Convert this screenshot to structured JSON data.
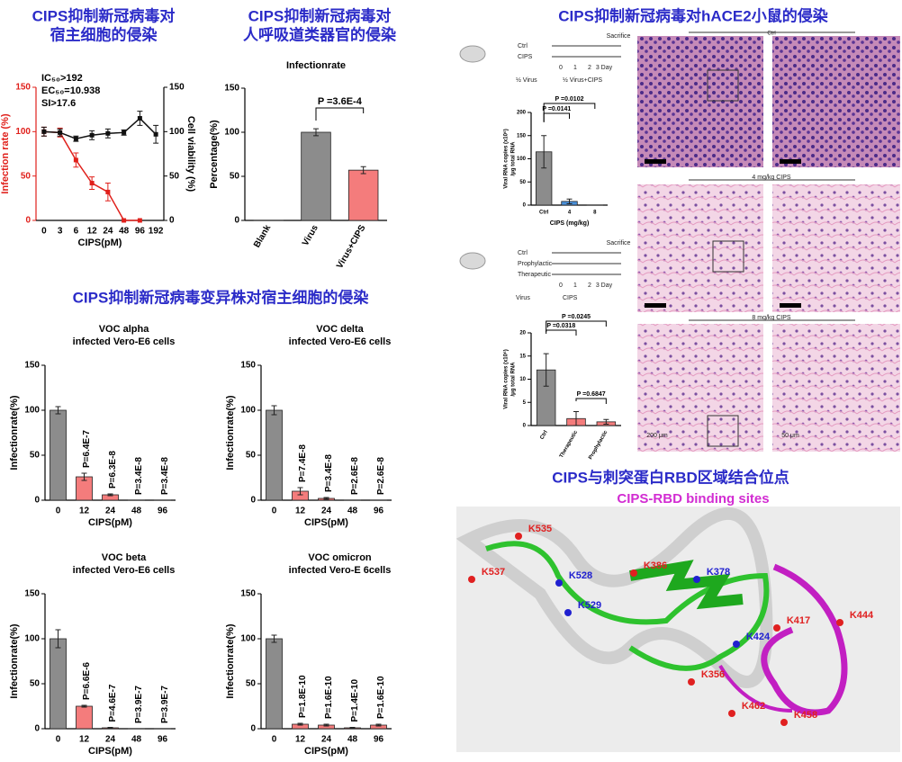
{
  "chart_data": [
    {
      "type": "line",
      "categories": [
        "0",
        "3",
        "6",
        "12",
        "24",
        "48",
        "96",
        "192"
      ],
      "x_label": "CIPS(pM)",
      "y_label": "Infection rate (%)",
      "y2_label": "Cell viability (%)",
      "ylim": [
        0,
        150
      ],
      "yticks": [
        0,
        50,
        100,
        150
      ],
      "y2lim": [
        0,
        150
      ],
      "y2ticks": [
        0,
        50,
        100,
        150
      ],
      "annotations": [
        "IC₅₀>192",
        "EC₅₀=10.938",
        "SI>17.6"
      ],
      "series": [
        {
          "color": "#e0201b",
          "values": [
            100,
            99,
            68,
            42,
            32,
            0,
            0,
            null
          ],
          "errors": [
            5,
            5,
            8,
            7,
            10,
            0,
            0,
            null
          ]
        },
        {
          "color": "#111111",
          "axis": "y2",
          "values": [
            100,
            99,
            92,
            96,
            98,
            99,
            115,
            97
          ],
          "errors": [
            5,
            4,
            3,
            5,
            5,
            3,
            8,
            10
          ]
        }
      ]
    },
    {
      "type": "bar",
      "title_lines": [
        "Infectionrate"
      ],
      "categories": [
        "Blank",
        "Virus",
        "Virus+CIPS"
      ],
      "y_label": "Percentage(%)",
      "values": [
        0,
        100,
        57
      ],
      "errors": [
        0,
        4,
        4
      ],
      "colors": [
        "#8c8c8c",
        "#8c8c8c",
        "#f47c7c"
      ],
      "ylim": [
        0,
        150
      ],
      "yticks": [
        0,
        50,
        100,
        150
      ],
      "brackets": [
        "P =3.6E-4"
      ]
    },
    {
      "type": "bar",
      "title_lines": [
        "VOC alpha",
        "infected Vero-E6 cells"
      ],
      "categories": [
        "0",
        "12",
        "24",
        "48",
        "96"
      ],
      "x_label": "CIPS(pM)",
      "y_label": "Infectionrate(%)",
      "values": [
        100,
        26,
        6,
        0,
        0
      ],
      "errors": [
        4,
        4,
        1,
        0,
        0
      ],
      "colors": [
        "#8c8c8c",
        "#f47c7c",
        "#f47c7c",
        "#f47c7c",
        "#f47c7c"
      ],
      "ylim": [
        0,
        150
      ],
      "yticks": [
        0,
        50,
        100,
        150
      ],
      "p_labels": [
        null,
        "P=6.4E-7",
        "P=6.3E-8",
        "P=3.4E-8",
        "P=3.4E-8"
      ]
    },
    {
      "type": "bar",
      "title_lines": [
        "VOC delta",
        "infected Vero-E6 cells"
      ],
      "categories": [
        "0",
        "12",
        "24",
        "48",
        "96"
      ],
      "x_label": "CIPS(pM)",
      "y_label": "Infectionrate(%)",
      "values": [
        100,
        10,
        2,
        0,
        0
      ],
      "errors": [
        5,
        4,
        1,
        0,
        0
      ],
      "colors": [
        "#8c8c8c",
        "#f47c7c",
        "#f47c7c",
        "#f47c7c",
        "#f47c7c"
      ],
      "ylim": [
        0,
        150
      ],
      "yticks": [
        0,
        50,
        100,
        150
      ],
      "p_labels": [
        null,
        "P=7.4E-8",
        "P=3.4E-8",
        "P=2.6E-8",
        "P=2.6E-8"
      ]
    },
    {
      "type": "bar",
      "title_lines": [
        "VOC beta",
        "infected Vero-E6 cells"
      ],
      "categories": [
        "0",
        "12",
        "24",
        "48",
        "96"
      ],
      "x_label": "CIPS(pM)",
      "y_label": "Infectionrate(%)",
      "values": [
        100,
        25,
        1,
        0,
        0
      ],
      "errors": [
        10,
        1,
        0.5,
        0,
        0
      ],
      "colors": [
        "#8c8c8c",
        "#f47c7c",
        "#f47c7c",
        "#f47c7c",
        "#f47c7c"
      ],
      "ylim": [
        0,
        150
      ],
      "yticks": [
        0,
        50,
        100,
        150
      ],
      "p_labels": [
        null,
        "P=6.6E-6",
        "P=4.6E-7",
        "P=3.9E-7",
        "P=3.9E-7"
      ]
    },
    {
      "type": "bar",
      "title_lines": [
        "VOC omicron",
        "infected Vero-E 6cells"
      ],
      "categories": [
        "0",
        "12",
        "24",
        "48",
        "96"
      ],
      "x_label": "CIPS(pM)",
      "y_label": "Infectionrate(%)",
      "values": [
        100,
        5,
        4,
        1,
        4
      ],
      "errors": [
        4,
        1,
        1,
        0.5,
        1
      ],
      "colors": [
        "#8c8c8c",
        "#f47c7c",
        "#f47c7c",
        "#f47c7c",
        "#f47c7c"
      ],
      "ylim": [
        0,
        150
      ],
      "yticks": [
        0,
        50,
        100,
        150
      ],
      "p_labels": [
        null,
        "P=1.8E-10",
        "P=1.6E-10",
        "P=1.4E-10",
        "P=1.6E-10"
      ]
    },
    {
      "type": "bar",
      "categories": [
        "Ctrl",
        "4",
        "8"
      ],
      "x_label": "CIPS (mg/kg)",
      "y_label_lines": [
        "Viral RNA copies (x10⁶)",
        "/μg total RNA"
      ],
      "values": [
        115,
        8,
        0
      ],
      "errors": [
        35,
        5,
        0
      ],
      "colors": [
        "#8c8c8c",
        "#4a90d9",
        "#f47c7c"
      ],
      "ylim": [
        0,
        200
      ],
      "yticks": [
        0,
        50,
        100,
        150,
        200
      ],
      "brackets": [
        "P =0.0102",
        "P =0.0141"
      ]
    },
    {
      "type": "bar",
      "categories": [
        "Ctrl",
        "Therapeutic",
        "Prophylactic"
      ],
      "y_label_lines": [
        "Viral RNA copies (x10⁶)",
        "/μg total RNA"
      ],
      "values": [
        12,
        1.5,
        0.8
      ],
      "errors": [
        3.5,
        1.5,
        0.5
      ],
      "colors": [
        "#8c8c8c",
        "#f47c7c",
        "#f47c7c"
      ],
      "ylim": [
        0,
        20
      ],
      "yticks": [
        0,
        5,
        10,
        15,
        20
      ],
      "brackets": [
        "P =0.0245",
        "P =0.0318",
        "P =0.6847"
      ]
    }
  ],
  "panels": {
    "cell_title": [
      "CIPS抑制新冠病毒对",
      "宿主细胞的侵染"
    ],
    "airway_title": [
      "CIPS抑制新冠病毒对",
      "人呼吸道类器官的侵染"
    ],
    "variant_title": "CIPS抑制新冠病毒变异株对宿主细胞的侵染",
    "mouse_title": "CIPS抑制新冠病毒对hACE2小鼠的侵染",
    "rbd_title": "CIPS与刺突蛋白RBD区域结合位点",
    "rbd_subtitle": "CIPS-RBD binding sites"
  },
  "timelines": [
    {
      "rows": [
        "Ctrl",
        "CIPS"
      ],
      "end": "Sacrifice",
      "days": [
        "0",
        "1",
        "2",
        "3 Day"
      ],
      "legend": [
        "½ Virus",
        "½ Virus+CIPS"
      ]
    },
    {
      "rows": [
        "Ctrl",
        "Prophylactic",
        "Therapeutic"
      ],
      "end": "Sacrifice",
      "days": [
        "0",
        "1",
        "2",
        "3 Day"
      ],
      "legend": [
        "Virus",
        "CIPS"
      ]
    }
  ],
  "histology": {
    "groups": [
      "Ctrl",
      "4 mg/kg CIPS",
      "8 mg/kg CIPS"
    ],
    "scale_bars": [
      "200 μm",
      "50 μm"
    ]
  },
  "rbd_sites": [
    {
      "label": "K535",
      "color": "#e02020"
    },
    {
      "label": "K537",
      "color": "#e02020"
    },
    {
      "label": "K528",
      "color": "#2020d0"
    },
    {
      "label": "K529",
      "color": "#2020d0"
    },
    {
      "label": "K386",
      "color": "#e02020"
    },
    {
      "label": "K378",
      "color": "#2020d0"
    },
    {
      "label": "K417",
      "color": "#e02020"
    },
    {
      "label": "K444",
      "color": "#e02020"
    },
    {
      "label": "K424",
      "color": "#2020d0"
    },
    {
      "label": "K356",
      "color": "#e02020"
    },
    {
      "label": "K462",
      "color": "#e02020"
    },
    {
      "label": "K458",
      "color": "#e02020"
    }
  ]
}
